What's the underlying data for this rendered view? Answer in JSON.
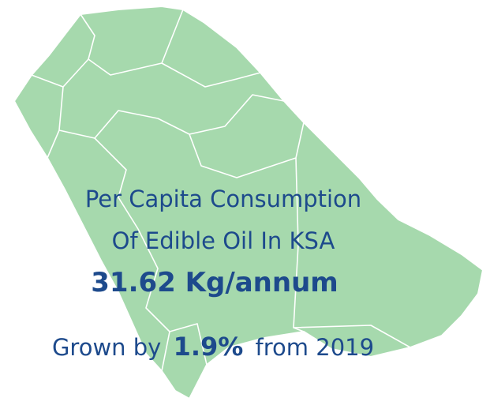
{
  "headline": {
    "line1": "Per Capita Consumption",
    "line2": "Of Edible Oil In KSA"
  },
  "value": "31.62 Kg/annum",
  "growth": {
    "prefix": "Grown by",
    "value": "1.9%",
    "suffix": "from 2019"
  }
}
